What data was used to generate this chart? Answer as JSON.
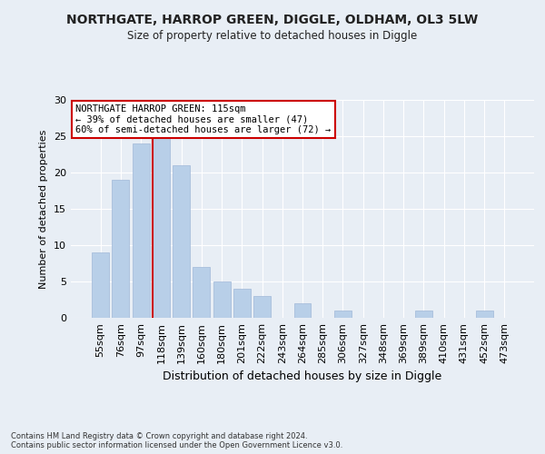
{
  "title1": "NORTHGATE, HARROP GREEN, DIGGLE, OLDHAM, OL3 5LW",
  "title2": "Size of property relative to detached houses in Diggle",
  "xlabel": "Distribution of detached houses by size in Diggle",
  "ylabel": "Number of detached properties",
  "categories": [
    "55sqm",
    "76sqm",
    "97sqm",
    "118sqm",
    "139sqm",
    "160sqm",
    "180sqm",
    "201sqm",
    "222sqm",
    "243sqm",
    "264sqm",
    "285sqm",
    "306sqm",
    "327sqm",
    "348sqm",
    "369sqm",
    "389sqm",
    "410sqm",
    "431sqm",
    "452sqm",
    "473sqm"
  ],
  "values": [
    9,
    19,
    24,
    25,
    21,
    7,
    5,
    4,
    3,
    0,
    2,
    0,
    1,
    0,
    0,
    0,
    1,
    0,
    0,
    1,
    0
  ],
  "bar_color": "#b8cfe8",
  "bar_edge_color": "#a0b8d8",
  "vline_x_index": 3,
  "vline_color": "#cc0000",
  "annotation_title": "NORTHGATE HARROP GREEN: 115sqm",
  "annotation_line2": "← 39% of detached houses are smaller (47)",
  "annotation_line3": "60% of semi-detached houses are larger (72) →",
  "annotation_box_color": "#ffffff",
  "annotation_box_edge": "#cc0000",
  "ylim": [
    0,
    30
  ],
  "yticks": [
    0,
    5,
    10,
    15,
    20,
    25,
    30
  ],
  "bg_color": "#e8eef5",
  "plot_bg_color": "#e8eef5",
  "grid_color": "#ffffff",
  "footer_line1": "Contains HM Land Registry data © Crown copyright and database right 2024.",
  "footer_line2": "Contains public sector information licensed under the Open Government Licence v3.0."
}
